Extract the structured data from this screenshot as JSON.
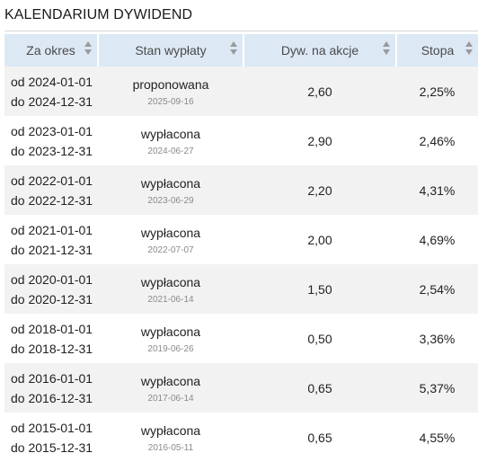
{
  "title": "KALENDARIUM DYWIDEND",
  "columns": [
    "Za okres",
    "Stan wypłaty",
    "Dyw. na akcje",
    "Stopa"
  ],
  "rows": [
    {
      "from": "od 2024-01-01",
      "to": "do 2024-12-31",
      "status": "proponowana",
      "date": "2025-09-16",
      "dividend": "2,60",
      "yield": "2,25%"
    },
    {
      "from": "od 2023-01-01",
      "to": "do 2023-12-31",
      "status": "wypłacona",
      "date": "2024-06-27",
      "dividend": "2,90",
      "yield": "2,46%"
    },
    {
      "from": "od 2022-01-01",
      "to": "do 2022-12-31",
      "status": "wypłacona",
      "date": "2023-06-29",
      "dividend": "2,20",
      "yield": "4,31%"
    },
    {
      "from": "od 2021-01-01",
      "to": "do 2021-12-31",
      "status": "wypłacona",
      "date": "2022-07-07",
      "dividend": "2,00",
      "yield": "4,69%"
    },
    {
      "from": "od 2020-01-01",
      "to": "do 2020-12-31",
      "status": "wypłacona",
      "date": "2021-06-14",
      "dividend": "1,50",
      "yield": "2,54%"
    },
    {
      "from": "od 2018-01-01",
      "to": "do 2018-12-31",
      "status": "wypłacona",
      "date": "2019-06-26",
      "dividend": "0,50",
      "yield": "3,36%"
    },
    {
      "from": "od 2016-01-01",
      "to": "do 2016-12-31",
      "status": "wypłacona",
      "date": "2017-06-14",
      "dividend": "0,65",
      "yield": "5,37%"
    },
    {
      "from": "od 2015-01-01",
      "to": "do 2015-12-31",
      "status": "wypłacona",
      "date": "2016-05-11",
      "dividend": "0,65",
      "yield": "4,55%"
    }
  ]
}
